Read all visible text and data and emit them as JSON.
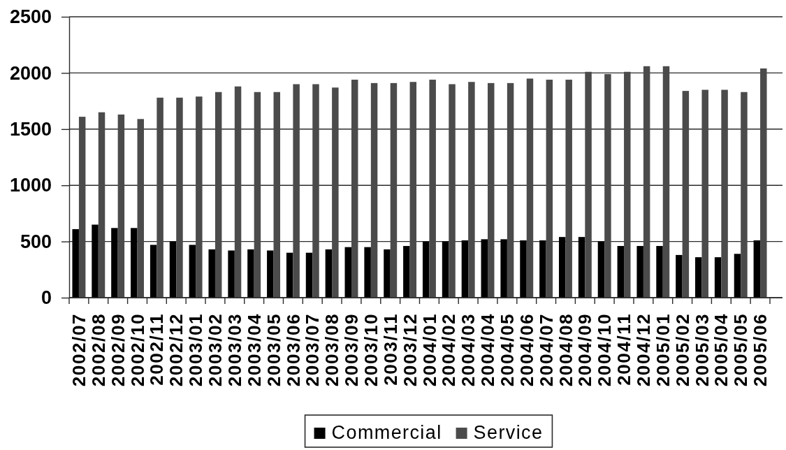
{
  "chart_data": {
    "type": "bar",
    "categories": [
      "2002/07",
      "2002/08",
      "2002/09",
      "2002/10",
      "2002/11",
      "2002/12",
      "2003/01",
      "2003/02",
      "2003/03",
      "2003/04",
      "2003/05",
      "2003/06",
      "2003/07",
      "2003/08",
      "2003/09",
      "2003/10",
      "2003/11",
      "2003/12",
      "2004/01",
      "2004/02",
      "2004/03",
      "2004/04",
      "2004/05",
      "2004/06",
      "2004/07",
      "2004/08",
      "2004/09",
      "2004/10",
      "2004/11",
      "2004/12",
      "2005/01",
      "2005/02",
      "2005/03",
      "2005/04",
      "2005/05",
      "2005/06"
    ],
    "series": [
      {
        "name": "Commercial",
        "color": "#000000",
        "values": [
          610,
          650,
          620,
          620,
          470,
          500,
          470,
          430,
          420,
          430,
          420,
          400,
          400,
          430,
          450,
          450,
          430,
          460,
          500,
          500,
          510,
          520,
          520,
          510,
          510,
          540,
          540,
          500,
          460,
          460,
          460,
          380,
          360,
          360,
          390,
          510
        ]
      },
      {
        "name": "Service",
        "color": "#4b4b4b",
        "values": [
          1610,
          1650,
          1630,
          1590,
          1780,
          1780,
          1790,
          1830,
          1880,
          1830,
          1830,
          1900,
          1900,
          1870,
          1940,
          1910,
          1910,
          1920,
          1940,
          1900,
          1920,
          1910,
          1910,
          1950,
          1940,
          1940,
          2010,
          1990,
          2010,
          2060,
          2060,
          1840,
          1850,
          1850,
          1830,
          2040
        ]
      }
    ],
    "ylim": [
      0,
      2500
    ],
    "yticks": [
      0,
      500,
      1000,
      1500,
      2000,
      2500
    ],
    "grid": "y",
    "legend": "bottom"
  }
}
